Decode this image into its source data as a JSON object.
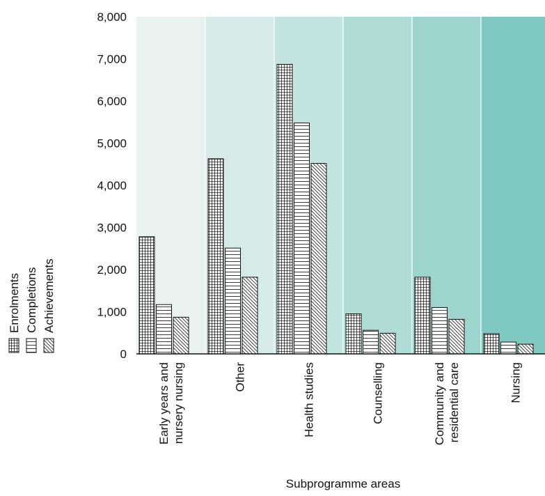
{
  "chart_data": {
    "type": "bar",
    "title": "",
    "xlabel": "Subprogramme areas",
    "ylabel": "",
    "ylim": [
      0,
      8000
    ],
    "yticks": [
      0,
      1000,
      2000,
      3000,
      4000,
      5000,
      6000,
      7000,
      8000
    ],
    "ytick_labels": [
      "0",
      "1,000",
      "2,000",
      "3,000",
      "4,000",
      "5,000",
      "6,000",
      "7,000",
      "8,000"
    ],
    "categories": [
      [
        "Early years and",
        "nursery nursing"
      ],
      [
        "Other"
      ],
      [
        "Health studies"
      ],
      [
        "Counselling"
      ],
      [
        "Community and",
        "residential care"
      ],
      [
        "Nursing"
      ]
    ],
    "series": [
      {
        "name": "Enrolments",
        "pattern": "grid",
        "values": [
          2780,
          4630,
          6870,
          950,
          1820,
          480
        ]
      },
      {
        "name": "Completions",
        "pattern": "horizontal",
        "values": [
          1170,
          2510,
          5480,
          560,
          1100,
          280
        ]
      },
      {
        "name": "Achievements",
        "pattern": "diagonal",
        "values": [
          870,
          1820,
          4520,
          490,
          820,
          230
        ]
      }
    ],
    "legend_position": "left, rotated",
    "grid": false,
    "band_colors": [
      "#e8f2f1",
      "#d6ebe9",
      "#c3e5e1",
      "#b0dcd8",
      "#9dd4cf",
      "#80c9c2"
    ]
  }
}
